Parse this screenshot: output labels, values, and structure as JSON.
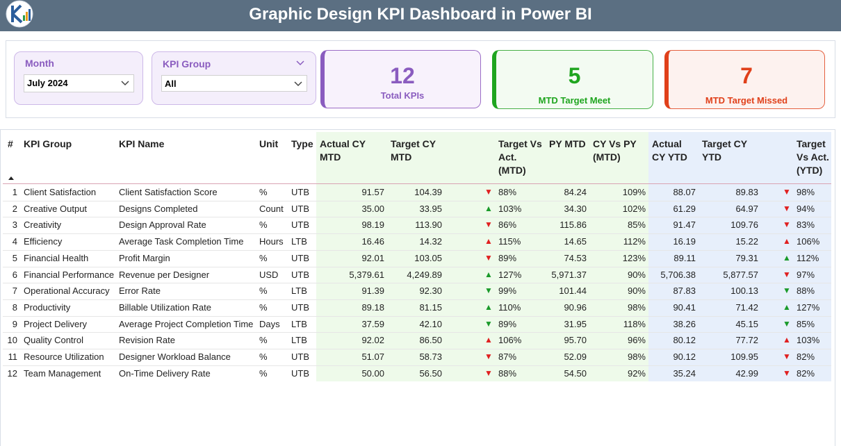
{
  "header": {
    "title": "Graphic Design KPI Dashboard in Power BI"
  },
  "slicers": [
    {
      "label": "Month",
      "value": "July 2024"
    },
    {
      "label": "KPI Group",
      "value": "All"
    }
  ],
  "cards": [
    {
      "value": 12,
      "label": "Total KPIs"
    },
    {
      "value": 5,
      "label": "MTD Target Meet"
    },
    {
      "value": 7,
      "label": "MTD Target Missed"
    }
  ],
  "table": {
    "columns": [
      "#",
      "KPI Group",
      "KPI Name",
      "Unit",
      "Type",
      "Actual CY MTD",
      "Target CY MTD",
      "Target Vs Act. (MTD)",
      "PY MTD",
      "CY Vs PY (MTD)",
      "Actual CY YTD",
      "Target CY YTD",
      "Target Vs Act. (YTD)"
    ],
    "rows": [
      [
        "1",
        "Client Satisfaction",
        "Client Satisfaction Score",
        "%",
        "UTB",
        "91.57",
        "104.39",
        "▼",
        "88%",
        "84.24",
        "109%",
        "88.07",
        "89.83",
        "▼",
        "98%"
      ],
      [
        "2",
        "Creative Output",
        "Designs Completed",
        "Count",
        "UTB",
        "35.00",
        "33.95",
        "▲",
        "103%",
        "34.30",
        "102%",
        "61.29",
        "64.97",
        "▼",
        "94%"
      ],
      [
        "3",
        "Creativity",
        "Design Approval Rate",
        "%",
        "UTB",
        "98.19",
        "113.90",
        "▼",
        "86%",
        "115.86",
        "85%",
        "91.47",
        "109.76",
        "▼",
        "83%"
      ],
      [
        "4",
        "Efficiency",
        "Average Task Completion Time",
        "Hours",
        "LTB",
        "16.46",
        "14.32",
        "▲",
        "115%",
        "14.65",
        "112%",
        "16.19",
        "15.22",
        "▲",
        "106%"
      ],
      [
        "5",
        "Financial Health",
        "Profit Margin",
        "%",
        "UTB",
        "92.01",
        "103.05",
        "▼",
        "89%",
        "74.53",
        "123%",
        "89.11",
        "79.31",
        "▲",
        "112%"
      ],
      [
        "6",
        "Financial Performance",
        "Revenue per Designer",
        "USD",
        "UTB",
        "5,379.61",
        "4,249.89",
        "▲",
        "127%",
        "5,971.37",
        "90%",
        "5,706.38",
        "5,877.57",
        "▼",
        "97%"
      ],
      [
        "7",
        "Operational Accuracy",
        "Error Rate",
        "%",
        "LTB",
        "91.39",
        "92.30",
        "▼",
        "99%",
        "101.44",
        "90%",
        "87.83",
        "100.13",
        "▼",
        "88%"
      ],
      [
        "8",
        "Productivity",
        "Billable Utilization Rate",
        "%",
        "UTB",
        "89.18",
        "81.15",
        "▲",
        "110%",
        "90.96",
        "98%",
        "90.41",
        "71.42",
        "▲",
        "127%"
      ],
      [
        "9",
        "Project Delivery",
        "Average Project Completion Time",
        "Days",
        "LTB",
        "37.59",
        "42.10",
        "▼",
        "89%",
        "31.95",
        "118%",
        "38.26",
        "45.15",
        "▼",
        "85%"
      ],
      [
        "10",
        "Quality Control",
        "Revision Rate",
        "%",
        "LTB",
        "92.02",
        "86.50",
        "▲",
        "106%",
        "95.70",
        "96%",
        "80.12",
        "77.72",
        "▲",
        "103%"
      ],
      [
        "11",
        "Resource Utilization",
        "Designer Workload Balance",
        "%",
        "UTB",
        "51.07",
        "58.73",
        "▼",
        "87%",
        "52.09",
        "98%",
        "90.12",
        "109.95",
        "▼",
        "82%"
      ],
      [
        "12",
        "Team Management",
        "On-Time Delivery Rate",
        "%",
        "UTB",
        "50.00",
        "56.50",
        "▼",
        "88%",
        "54.50",
        "92%",
        "35.24",
        "42.99",
        "▼",
        "82%"
      ]
    ]
  }
}
